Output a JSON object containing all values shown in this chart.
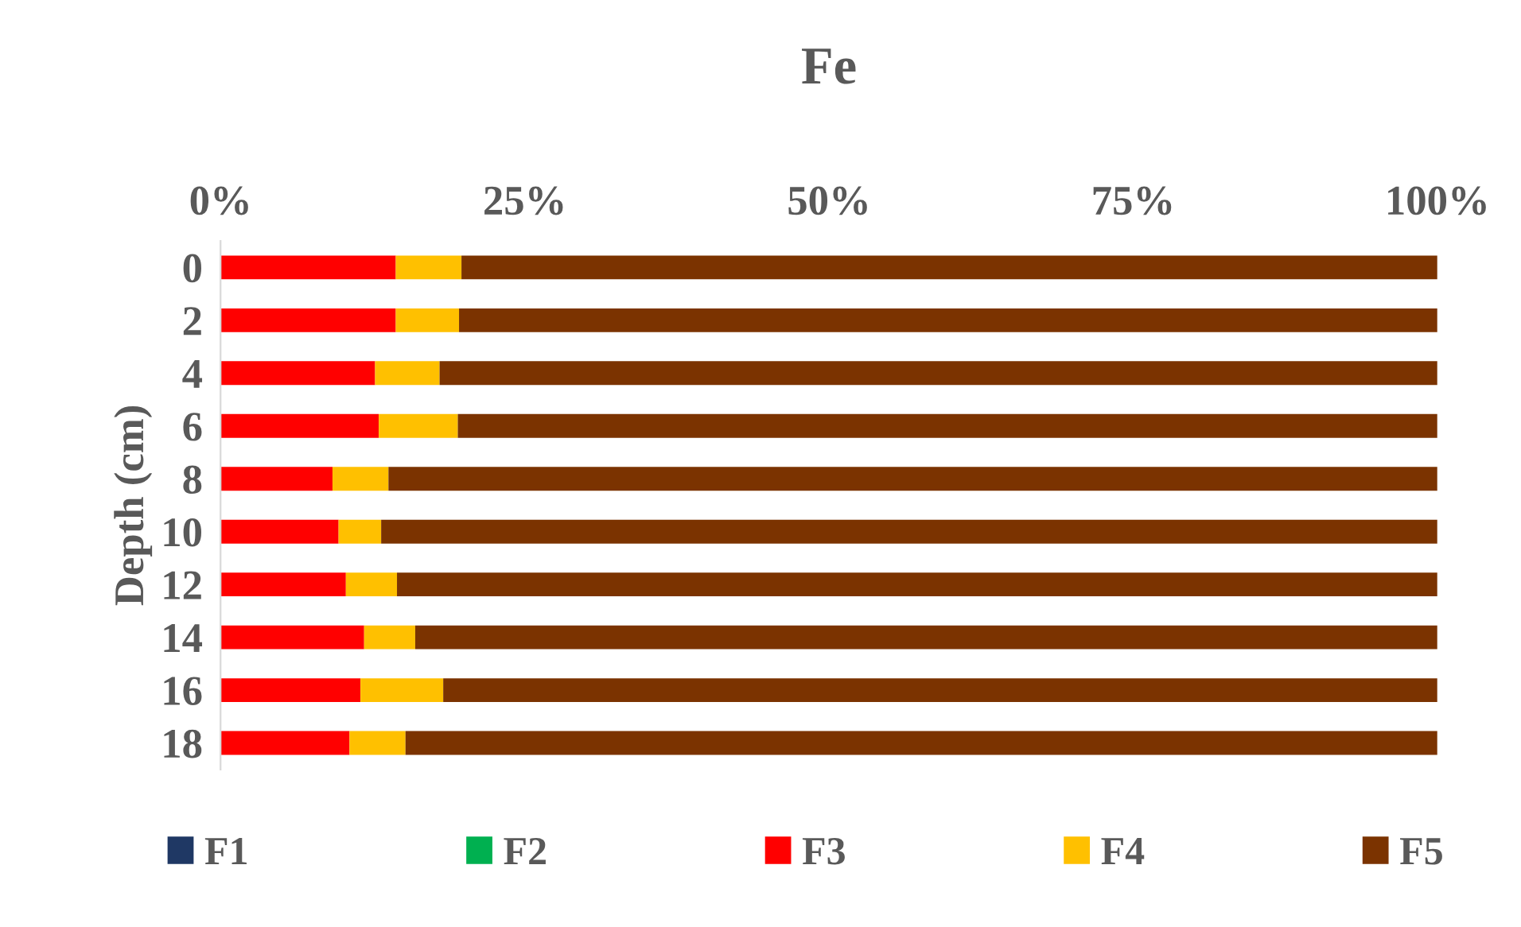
{
  "chart_data": {
    "type": "bar",
    "orientation": "horizontal",
    "stacked": true,
    "title": "Fe",
    "ylabel": "Depth (cm)",
    "categories": [
      "0",
      "2",
      "4",
      "6",
      "8",
      "10",
      "12",
      "14",
      "16",
      "18"
    ],
    "series": [
      {
        "name": "F1",
        "color": "#1f3864",
        "values": [
          0,
          0,
          0,
          0,
          0,
          0,
          0,
          0,
          0,
          0
        ]
      },
      {
        "name": "F2",
        "color": "#00b050",
        "values": [
          0,
          0,
          0,
          0,
          0,
          0,
          0,
          0,
          0,
          0
        ]
      },
      {
        "name": "F3",
        "color": "#ff0000",
        "values": [
          14.4,
          14.4,
          12.7,
          13.0,
          9.2,
          9.7,
          10.3,
          11.8,
          11.5,
          10.6
        ]
      },
      {
        "name": "F4",
        "color": "#ffc000",
        "values": [
          5.4,
          5.2,
          5.3,
          6.5,
          4.6,
          3.5,
          4.2,
          4.2,
          6.8,
          4.6
        ]
      },
      {
        "name": "F5",
        "color": "#7b3300",
        "values": [
          80.2,
          80.4,
          82.0,
          80.5,
          86.2,
          86.8,
          85.5,
          84.0,
          81.7,
          84.8
        ]
      }
    ],
    "xlim": [
      0,
      100
    ],
    "xticks": [
      {
        "value": 0,
        "label": "0%"
      },
      {
        "value": 25,
        "label": "25%"
      },
      {
        "value": 50,
        "label": "50%"
      },
      {
        "value": 75,
        "label": "75%"
      },
      {
        "value": 100,
        "label": "100%"
      }
    ],
    "grid": false,
    "legend": "bottom"
  }
}
